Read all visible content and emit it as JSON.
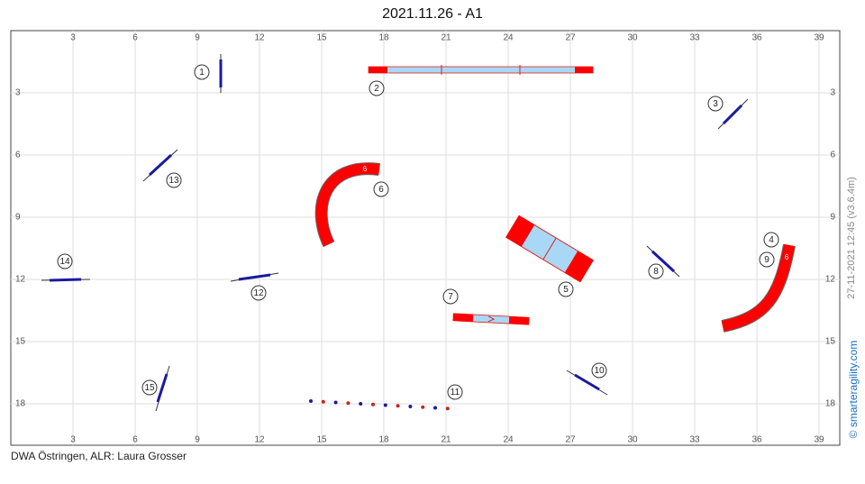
{
  "header": {
    "title": "2021.11.26 - A1"
  },
  "grid": {
    "xticks": [
      3,
      6,
      9,
      12,
      15,
      18,
      21,
      24,
      27,
      30,
      33,
      36,
      39
    ],
    "yticks": [
      3,
      6,
      9,
      12,
      15,
      18
    ]
  },
  "course_numbers": [
    1,
    2,
    3,
    4,
    5,
    6,
    7,
    8,
    9,
    10,
    11,
    12,
    13,
    14,
    15
  ],
  "tunnel_labels": [
    "6",
    "6"
  ],
  "side": {
    "version": "27-11-2021 12:45  (v3.6.4m)",
    "credit": "© smarteragility.com"
  },
  "footer": {
    "text": "DWA Östringen,  ALR: Laura Grosser"
  }
}
